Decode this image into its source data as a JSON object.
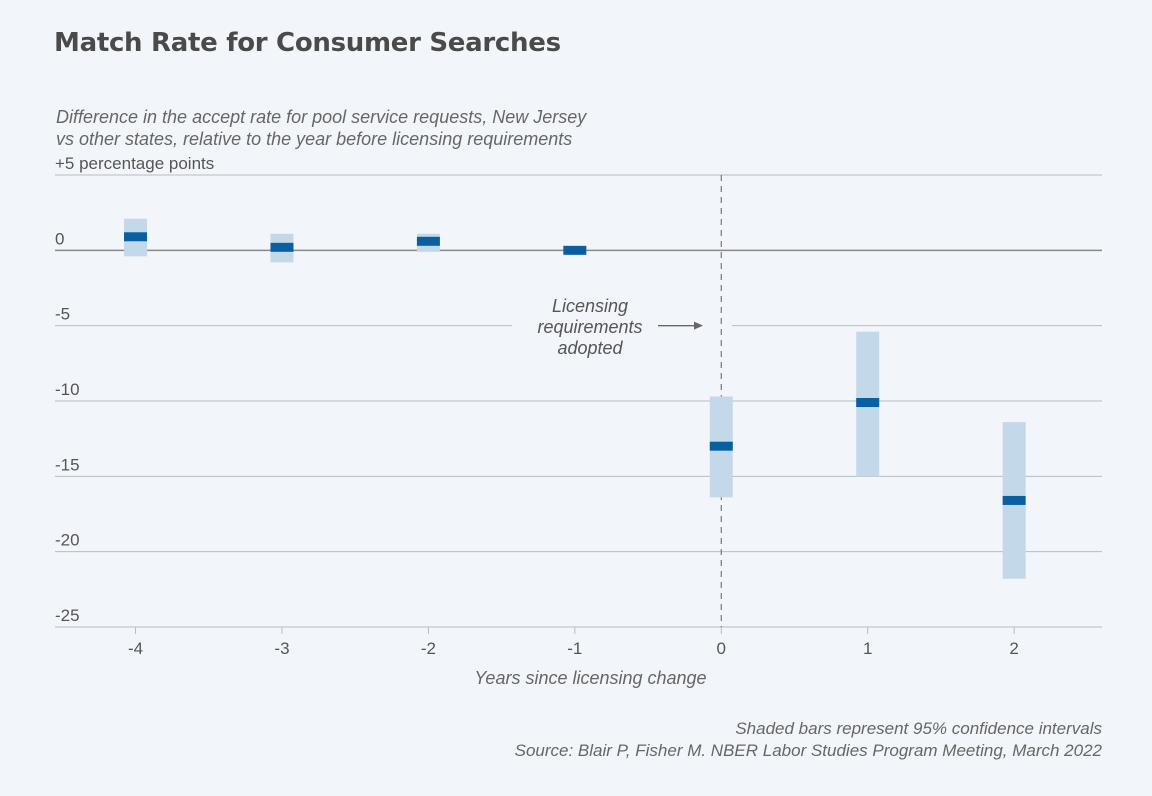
{
  "header": {
    "title": "Match Rate for Consumer Searches",
    "subtitle_line1": "Difference in the accept rate for pool service requests, New Jersey",
    "subtitle_line2": "vs other states, relative to the year before licensing requirements"
  },
  "footer": {
    "note": "Shaded bars represent 95% confidence intervals",
    "source": "Source: Blair P, Fisher M. NBER Labor Studies Program Meeting, March 2022"
  },
  "colors": {
    "point": "#0a5fa0",
    "ci": "#c3d9ea",
    "grid": "#b8bcc2",
    "zero_line": "#888888",
    "background": "#f2f6fa"
  },
  "chart_data": {
    "type": "scatter",
    "xlabel": "Years since licensing change",
    "ylabel": "",
    "ylim": [
      -25,
      5
    ],
    "xlim": [
      -4.55,
      2.6
    ],
    "x_ticks": [
      -4,
      -3,
      -2,
      -1,
      0,
      1,
      2
    ],
    "x_tick_labels": [
      "-4",
      "-3",
      "-2",
      "-1",
      "0",
      "1",
      "2"
    ],
    "y_ticks": [
      5,
      0,
      -5,
      -10,
      -15,
      -20,
      -25
    ],
    "y_tick_labels": [
      "+5 percentage points",
      "0",
      "-5",
      "-10",
      "-15",
      "-20",
      "-25"
    ],
    "grid": true,
    "points": [
      {
        "x": -4,
        "y": 0.9,
        "ci_low": -0.4,
        "ci_high": 2.1
      },
      {
        "x": -3,
        "y": 0.2,
        "ci_low": -0.8,
        "ci_high": 1.1
      },
      {
        "x": -2,
        "y": 0.6,
        "ci_low": -0.1,
        "ci_high": 1.1
      },
      {
        "x": -1,
        "y": 0.0,
        "ci_low": 0.0,
        "ci_high": 0.0
      },
      {
        "x": 0,
        "y": -13.0,
        "ci_low": -16.4,
        "ci_high": -9.7
      },
      {
        "x": 1,
        "y": -10.1,
        "ci_low": -15.0,
        "ci_high": -5.4
      },
      {
        "x": 2,
        "y": -16.6,
        "ci_low": -21.8,
        "ci_high": -11.4
      }
    ],
    "reference_line": {
      "x": 0,
      "style": "dashed"
    },
    "annotation": {
      "lines": [
        "Licensing",
        "requirements",
        "adopted"
      ],
      "x": 0,
      "y": -5
    }
  }
}
